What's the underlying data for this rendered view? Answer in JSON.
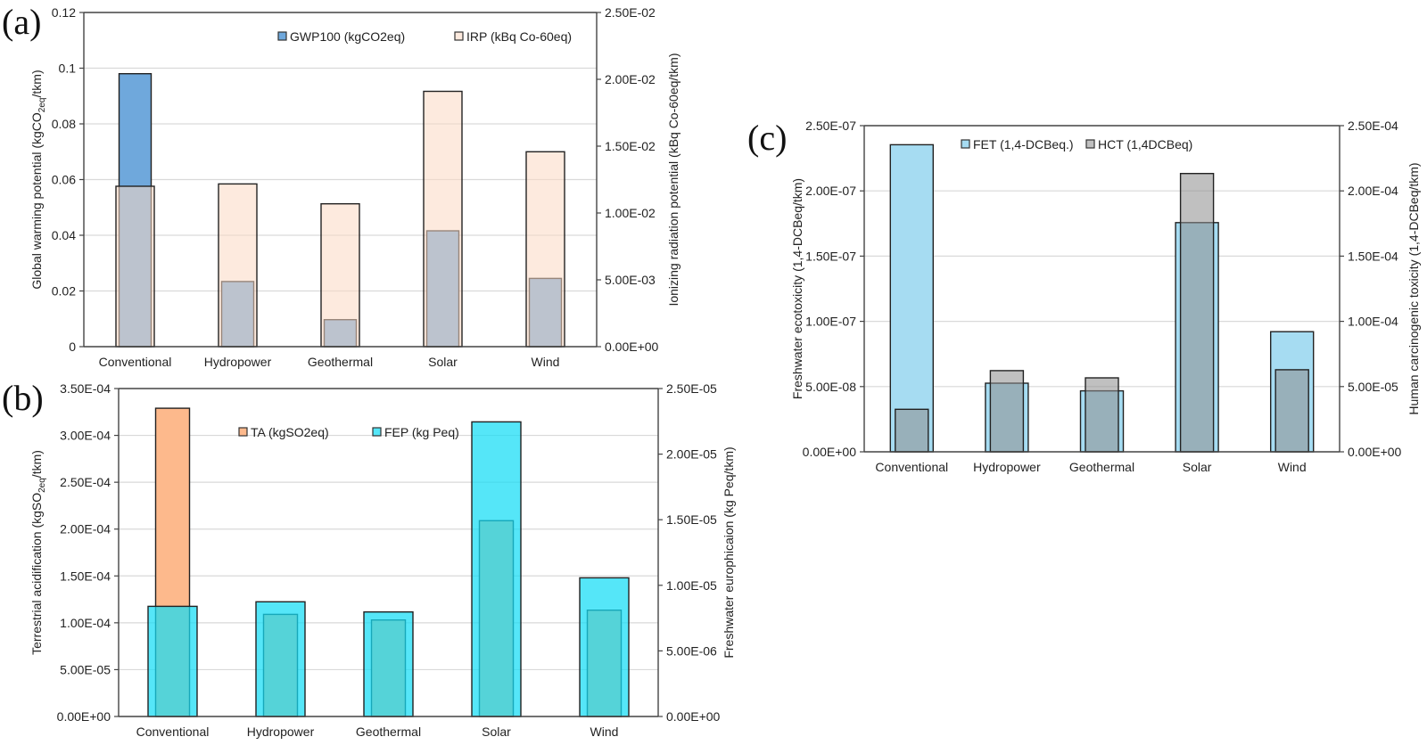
{
  "chart_data": [
    {
      "panel": "(a)",
      "type": "bar",
      "categories": [
        "Conventional",
        "Hydropower",
        "Geothermal",
        "Solar",
        "Wind"
      ],
      "series": [
        {
          "name": "GWP100 (kgCO2eq)",
          "axis": "left",
          "values": [
            0.098,
            0.0234,
            0.0097,
            0.0416,
            0.0245
          ],
          "color": "#6fa8dc",
          "opacity": 1,
          "stroke": "#222222"
        },
        {
          "name": "IRP (kBq Co-60eq)",
          "axis": "right",
          "values": [
            0.012,
            0.01217,
            0.01069,
            0.0191,
            0.01458
          ],
          "color": "#fbd9c3",
          "opacity": 0.55,
          "stroke": "#222222"
        }
      ],
      "ylabel_left": {
        "pre": "Global warming potential (kgCO",
        "sub": "2eq",
        "post": "/tkm)"
      },
      "ylabel_right": "Ionizing radiation potential (kBq Co-60eq/tkm)",
      "ylim_left": [
        0,
        0.12
      ],
      "yticks_left": [
        "0",
        "0.02",
        "0.04",
        "0.06",
        "0.08",
        "0.1",
        "0.12"
      ],
      "ylim_right": [
        0,
        0.025
      ],
      "yticks_right": [
        "0.00E+00",
        "5.00E-03",
        "1.00E-02",
        "1.50E-02",
        "2.00E-02",
        "2.50E-02"
      ],
      "grid": true,
      "legend_position": "top-right"
    },
    {
      "panel": "(b)",
      "type": "bar",
      "categories": [
        "Conventional",
        "Hydropower",
        "Geothermal",
        "Solar",
        "Wind"
      ],
      "series": [
        {
          "name": "TA (kgSO2eq)",
          "axis": "left",
          "values": [
            0.000329,
            0.000109,
            0.000103,
            0.000209,
            0.0001135
          ],
          "color": "#fdb98c",
          "opacity": 1,
          "stroke": "#222222"
        },
        {
          "name": "FEP (kg Peq)",
          "axis": "right",
          "values": [
            8.4e-06,
            8.74e-06,
            7.97e-06,
            2.246e-05,
            1.057e-05
          ],
          "color": "#14dcf5",
          "opacity": 0.72,
          "stroke": "#222222"
        }
      ],
      "ylabel_left": {
        "pre": "Terrestrial acidification (kgSO",
        "sub": "2eq",
        "post": "/tkm)"
      },
      "ylabel_right": "Freshwater europhicaion (kg Peq/tkm)",
      "ylim_left": [
        0,
        0.00035
      ],
      "yticks_left": [
        "0.00E+00",
        "5.00E-05",
        "1.00E-04",
        "1.50E-04",
        "2.00E-04",
        "2.50E-04",
        "3.00E-04",
        "3.50E-04"
      ],
      "ylim_right": [
        0,
        2.5e-05
      ],
      "yticks_right": [
        "0.00E+00",
        "5.00E-06",
        "1.00E-05",
        "1.50E-05",
        "2.00E-05",
        "2.50E-05"
      ],
      "grid": true,
      "legend_position": "top-center"
    },
    {
      "panel": "(c)",
      "type": "bar",
      "categories": [
        "Conventional",
        "Hydropower",
        "Geothermal",
        "Solar",
        "Wind"
      ],
      "series": [
        {
          "name": "FET (1,4-DCBeq.)",
          "axis": "left",
          "values": [
            2.354e-07,
            5.26e-08,
            4.67e-08,
            1.757e-07,
            9.21e-08
          ],
          "color": "#a6dcf2",
          "opacity": 1,
          "stroke": "#222222"
        },
        {
          "name": "HCT (1,4DCBeq)",
          "axis": "right",
          "values": [
            3.26e-05,
            6.22e-05,
            5.67e-05,
            0.0002133,
            6.29e-05
          ],
          "color": "#8c8c8c",
          "opacity": 0.55,
          "stroke": "#222222"
        }
      ],
      "ylabel_left": {
        "pre": "Freshwater ecotoxicity (1,4-DCBeq/tkm)",
        "sub": "",
        "post": ""
      },
      "ylabel_right": "Human carcinogenic toxicity (1,4-DCBeq/tkm)",
      "ylim_left": [
        0,
        2.5e-07
      ],
      "yticks_left": [
        "0.00E+00",
        "5.00E-08",
        "1.00E-07",
        "1.50E-07",
        "2.00E-07",
        "2.50E-07"
      ],
      "ylim_right": [
        0,
        0.00025
      ],
      "yticks_right": [
        "0.00E+00",
        "5.00E-05",
        "1.00E-04",
        "1.50E-04",
        "2.00E-04",
        "2.50E-04"
      ],
      "grid": true,
      "legend_position": "top-center"
    }
  ]
}
